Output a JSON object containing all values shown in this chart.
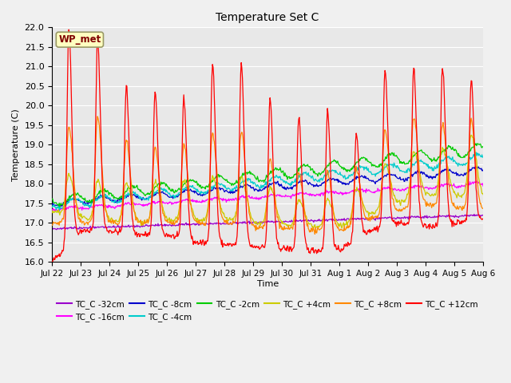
{
  "title": "Temperature Set C",
  "xlabel": "Time",
  "ylabel": "Temperature (C)",
  "ylim": [
    16.0,
    22.0
  ],
  "yticks": [
    16.0,
    16.5,
    17.0,
    17.5,
    18.0,
    18.5,
    19.0,
    19.5,
    20.0,
    20.5,
    21.0,
    21.5,
    22.0
  ],
  "xtick_labels": [
    "Jul 22",
    "Jul 23",
    "Jul 24",
    "Jul 25",
    "Jul 26",
    "Jul 27",
    "Jul 28",
    "Jul 29",
    "Jul 30",
    "Jul 31",
    "Aug 1",
    "Aug 2",
    "Aug 3",
    "Aug 4",
    "Aug 5",
    "Aug 6"
  ],
  "legend_label": "WP_met",
  "legend_box_color": "#ffffc0",
  "legend_text_color": "#800000",
  "legend_border_color": "#999966",
  "series_colors": {
    "TC_C -32cm": "#9900cc",
    "TC_C -16cm": "#ff00ff",
    "TC_C -8cm": "#0000cc",
    "TC_C -4cm": "#00cccc",
    "TC_C -2cm": "#00cc00",
    "TC_C +4cm": "#cccc00",
    "TC_C +8cm": "#ff8800",
    "TC_C +12cm": "#ff0000"
  },
  "plot_bg_color": "#e8e8e8",
  "fig_bg_color": "#f0f0f0",
  "grid_color": "#ffffff",
  "seed": 42,
  "n_days": 16
}
